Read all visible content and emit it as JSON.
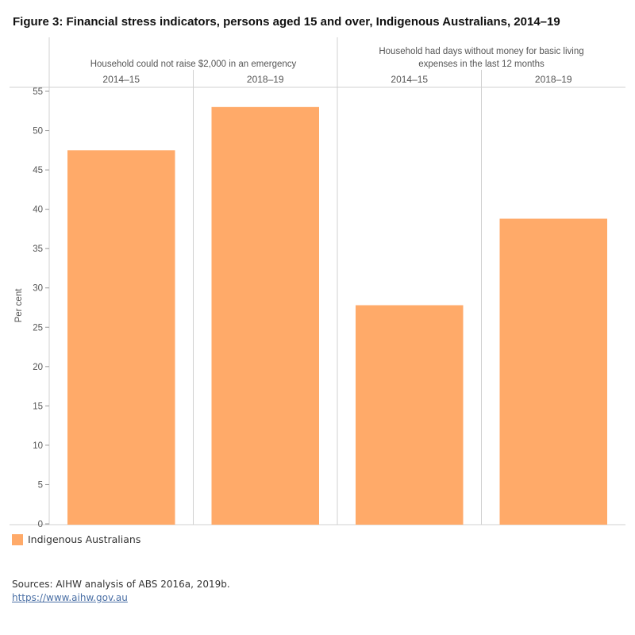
{
  "title": "Figure 3: Financial stress indicators, persons aged 15 and over, Indigenous Australians, 2014–19",
  "chart_data": {
    "type": "bar",
    "groups": [
      {
        "label": "Household could not raise $2,000 in an emergency",
        "categories": [
          "2014–15",
          "2018–19"
        ],
        "values": [
          47.5,
          53.0
        ]
      },
      {
        "label": "Household had days without money for basic living expenses in the last 12 months",
        "categories": [
          "2014–15",
          "2018–19"
        ],
        "values": [
          27.8,
          38.8
        ]
      }
    ],
    "series": [
      {
        "name": "Indigenous Australians",
        "color": "#FFAA69"
      }
    ],
    "ylabel": "Per cent",
    "ylim": [
      0,
      55
    ],
    "yticks": [
      0,
      5,
      10,
      15,
      20,
      25,
      30,
      35,
      40,
      45,
      50,
      55
    ],
    "grid": false,
    "legend": "bottom-left"
  },
  "legend": {
    "label": "Indigenous Australians"
  },
  "sources": "Sources: AIHW analysis of ABS 2016a, 2019b.",
  "link": "https://www.aihw.gov.au"
}
